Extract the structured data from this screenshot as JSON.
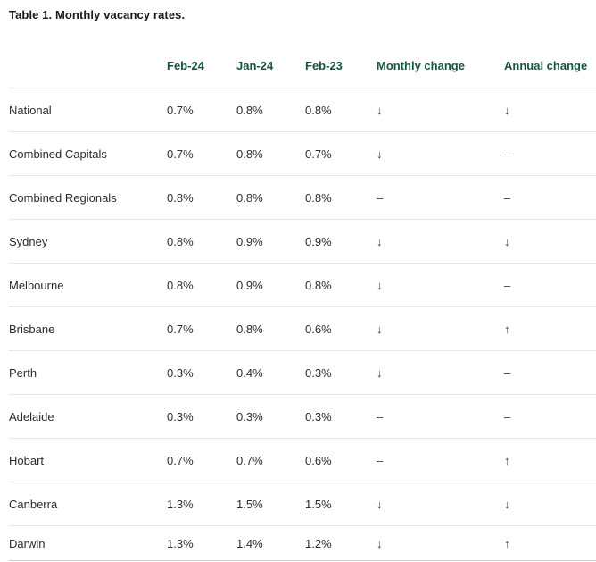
{
  "title": "Table 1. Monthly vacancy rates.",
  "colors": {
    "header_text_green": "#17553a",
    "body_text": "#2e2e2e",
    "row_divider": "#e7e7e7",
    "table_bottom_border": "#cfcfcf",
    "background": "#ffffff"
  },
  "chart_data": {
    "type": "table",
    "title": "Table 1. Monthly vacancy rates.",
    "columns": {
      "region": "",
      "feb24": "Feb-24",
      "jan24": "Jan-24",
      "feb23": "Feb-23",
      "monthly": "Monthly change",
      "annual": "Annual change"
    },
    "rows": [
      {
        "region": "National",
        "feb24": "0.7%",
        "jan24": "0.8%",
        "feb23": "0.8%",
        "monthly_change": "↓",
        "annual_change": "↓"
      },
      {
        "region": "Combined Capitals",
        "feb24": "0.7%",
        "jan24": "0.8%",
        "feb23": "0.7%",
        "monthly_change": "↓",
        "annual_change": "–"
      },
      {
        "region": "Combined Regionals",
        "feb24": "0.8%",
        "jan24": "0.8%",
        "feb23": "0.8%",
        "monthly_change": "–",
        "annual_change": "–"
      },
      {
        "region": "Sydney",
        "feb24": "0.8%",
        "jan24": "0.9%",
        "feb23": "0.9%",
        "monthly_change": "↓",
        "annual_change": "↓"
      },
      {
        "region": "Melbourne",
        "feb24": "0.8%",
        "jan24": "0.9%",
        "feb23": "0.8%",
        "monthly_change": "↓",
        "annual_change": "–"
      },
      {
        "region": "Brisbane",
        "feb24": "0.7%",
        "jan24": "0.8%",
        "feb23": "0.6%",
        "monthly_change": "↓",
        "annual_change": "↑"
      },
      {
        "region": "Perth",
        "feb24": "0.3%",
        "jan24": "0.4%",
        "feb23": "0.3%",
        "monthly_change": "↓",
        "annual_change": "–"
      },
      {
        "region": "Adelaide",
        "feb24": "0.3%",
        "jan24": "0.3%",
        "feb23": "0.3%",
        "monthly_change": "–",
        "annual_change": "–"
      },
      {
        "region": "Hobart",
        "feb24": "0.7%",
        "jan24": "0.7%",
        "feb23": "0.6%",
        "monthly_change": "–",
        "annual_change": "↑"
      },
      {
        "region": "Canberra",
        "feb24": "1.3%",
        "jan24": "1.5%",
        "feb23": "1.5%",
        "monthly_change": "↓",
        "annual_change": "↓"
      },
      {
        "region": "Darwin",
        "feb24": "1.3%",
        "jan24": "1.4%",
        "feb23": "1.2%",
        "monthly_change": "↓",
        "annual_change": "↑"
      }
    ]
  }
}
